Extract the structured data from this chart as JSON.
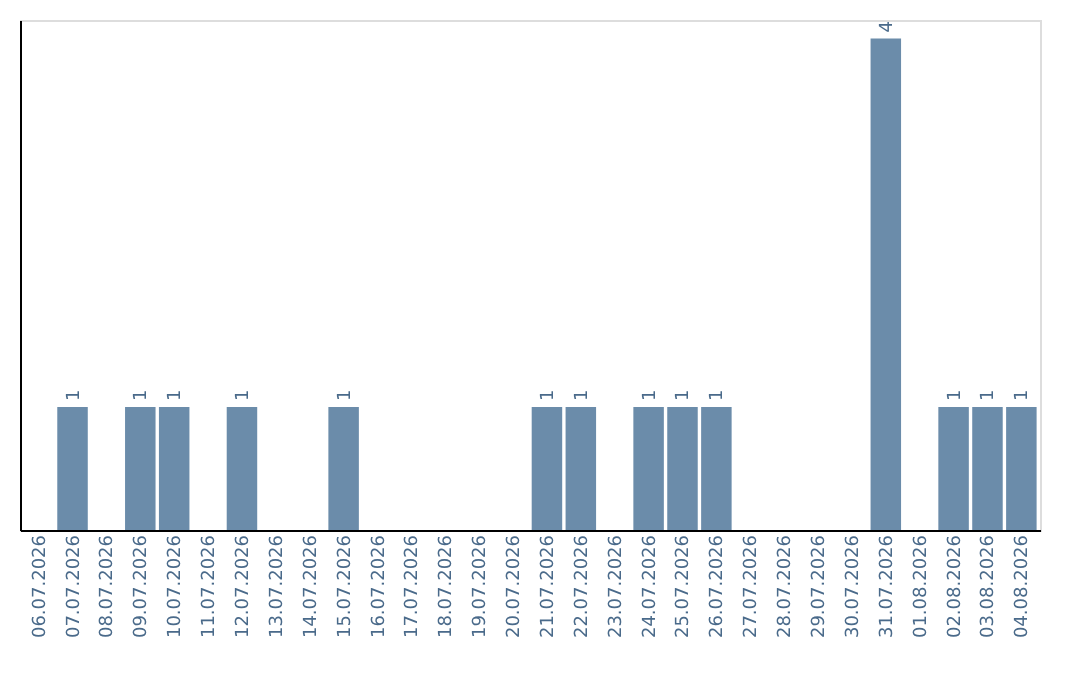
{
  "chart_data": {
    "type": "bar",
    "categories": [
      "06.07.2026",
      "07.07.2026",
      "08.07.2026",
      "09.07.2026",
      "10.07.2026",
      "11.07.2026",
      "12.07.2026",
      "13.07.2026",
      "14.07.2026",
      "15.07.2026",
      "16.07.2026",
      "17.07.2026",
      "18.07.2026",
      "19.07.2026",
      "20.07.2026",
      "21.07.2026",
      "22.07.2026",
      "23.07.2026",
      "24.07.2026",
      "25.07.2026",
      "26.07.2026",
      "27.07.2026",
      "28.07.2026",
      "29.07.2026",
      "30.07.2026",
      "31.07.2026",
      "01.08.2026",
      "02.08.2026",
      "03.08.2026",
      "04.08.2026"
    ],
    "values": [
      0,
      1,
      0,
      1,
      1,
      0,
      1,
      0,
      0,
      1,
      0,
      0,
      0,
      0,
      0,
      1,
      1,
      0,
      1,
      1,
      1,
      0,
      0,
      0,
      0,
      4,
      0,
      1,
      1,
      1
    ],
    "value_labels": [
      null,
      "1",
      null,
      "1",
      "1",
      null,
      "1",
      null,
      null,
      "1",
      null,
      null,
      null,
      null,
      null,
      "1",
      "1",
      null,
      "1",
      "1",
      "1",
      null,
      null,
      null,
      null,
      "4",
      null,
      "1",
      "1",
      "1"
    ],
    "color": "#6b8caa",
    "ylim": [
      0,
      4.15
    ],
    "tick_labels": "x",
    "grid": false
  }
}
